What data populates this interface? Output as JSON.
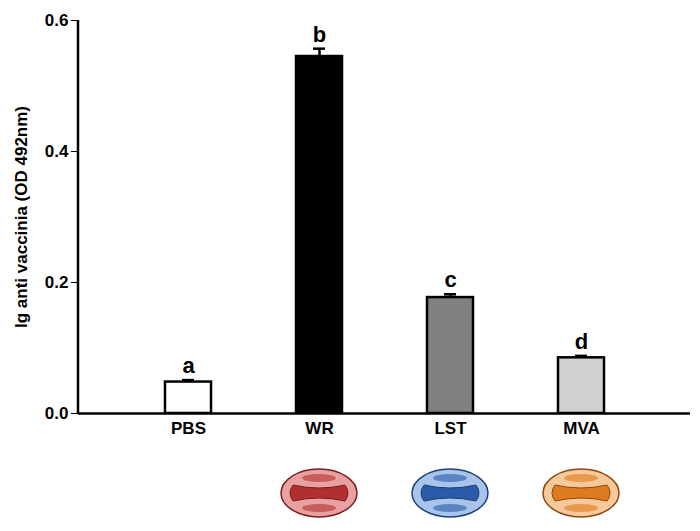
{
  "chart_data": {
    "type": "bar",
    "y_label": "Ig anti vaccinia (OD 492nm)",
    "categories": [
      "PBS",
      "WR",
      "LST",
      "MVA"
    ],
    "values": [
      0.048,
      0.545,
      0.177,
      0.085
    ],
    "errors": [
      0.003,
      0.012,
      0.005,
      0.003
    ],
    "letters": [
      "a",
      "b",
      "c",
      "d"
    ],
    "colors": [
      "#ffffff",
      "#000000",
      "#808080",
      "#d0d0d0"
    ],
    "ylim": [
      0,
      0.6
    ],
    "yticks": [
      {
        "value": 0,
        "label": "0.0"
      },
      {
        "value": 0.2,
        "label": "0.2"
      },
      {
        "value": 0.4,
        "label": "0.4"
      },
      {
        "value": 0.6,
        "label": "0.6"
      }
    ],
    "grid": false
  }
}
